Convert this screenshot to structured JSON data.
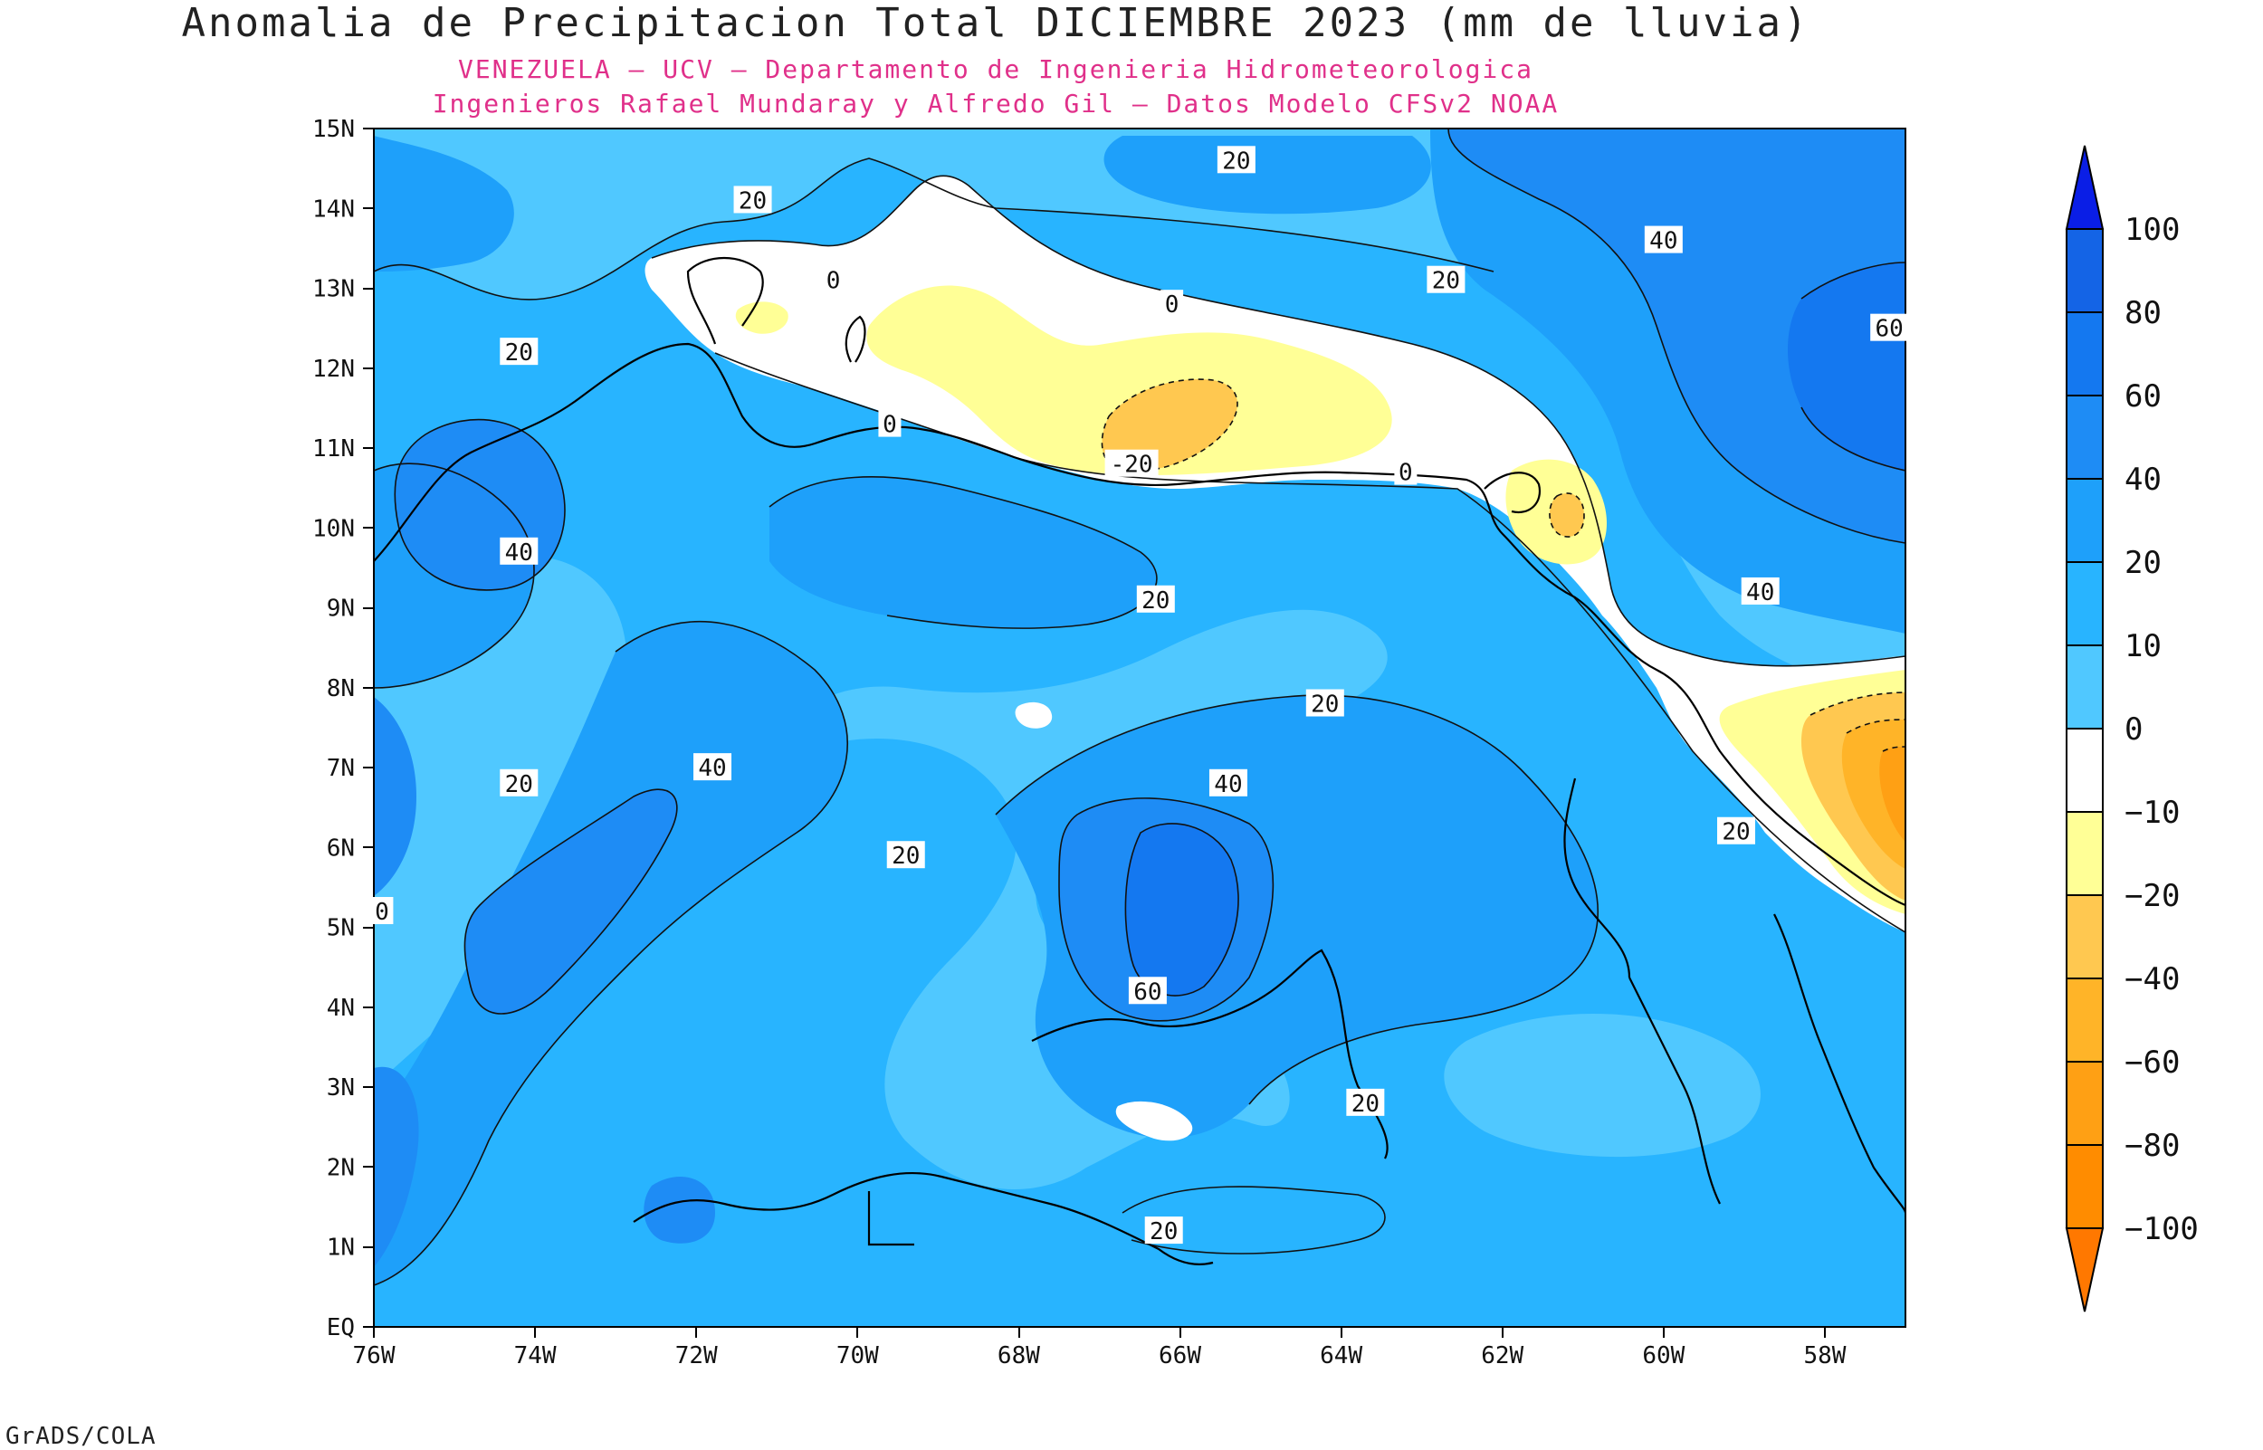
{
  "title": "Anomalia de Precipitacion Total DICIEMBRE 2023 (mm de lluvia)",
  "subtitle_line1": "VENEZUELA – UCV – Departamento de Ingenieria Hidrometeorologica",
  "subtitle_line2": "Ingenieros Rafael Mundaray y Alfredo Gil – Datos Modelo CFSv2 NOAA",
  "footer": "GrADS/COLA",
  "map": {
    "lon_ticks": [
      "76W",
      "74W",
      "72W",
      "70W",
      "68W",
      "66W",
      "64W",
      "62W",
      "60W",
      "58W"
    ],
    "lat_ticks": [
      "EQ",
      "1N",
      "2N",
      "3N",
      "4N",
      "5N",
      "6N",
      "7N",
      "8N",
      "9N",
      "10N",
      "11N",
      "12N",
      "13N",
      "14N",
      "15N"
    ],
    "lon_range": [
      -76,
      -57
    ],
    "lat_range": [
      0,
      15
    ],
    "contour_labels": [
      {
        "text": "20",
        "lon": -71.3,
        "lat": 14.1
      },
      {
        "text": "20",
        "lon": -65.3,
        "lat": 14.6
      },
      {
        "text": "40",
        "lon": -60.0,
        "lat": 13.6
      },
      {
        "text": "0",
        "lon": -70.3,
        "lat": 13.1
      },
      {
        "text": "20",
        "lon": -62.7,
        "lat": 13.1
      },
      {
        "text": "0",
        "lon": -66.1,
        "lat": 12.8
      },
      {
        "text": "60",
        "lon": -57.2,
        "lat": 12.5
      },
      {
        "text": "20",
        "lon": -74.2,
        "lat": 12.2
      },
      {
        "text": "0",
        "lon": -69.6,
        "lat": 11.3
      },
      {
        "text": "-20",
        "lon": -66.6,
        "lat": 10.8
      },
      {
        "text": "0",
        "lon": -63.2,
        "lat": 10.7
      },
      {
        "text": "40",
        "lon": -74.2,
        "lat": 9.7
      },
      {
        "text": "20",
        "lon": -66.3,
        "lat": 9.1
      },
      {
        "text": "40",
        "lon": -58.8,
        "lat": 9.2
      },
      {
        "text": "20",
        "lon": -64.2,
        "lat": 7.8
      },
      {
        "text": "20",
        "lon": -74.2,
        "lat": 6.8
      },
      {
        "text": "40",
        "lon": -71.8,
        "lat": 7.0
      },
      {
        "text": "40",
        "lon": -65.4,
        "lat": 6.8
      },
      {
        "text": "20",
        "lon": -69.4,
        "lat": 5.9
      },
      {
        "text": "20",
        "lon": -59.1,
        "lat": 6.2
      },
      {
        "text": "0",
        "lon": -75.9,
        "lat": 5.2
      },
      {
        "text": "60",
        "lon": -66.4,
        "lat": 4.2
      },
      {
        "text": "20",
        "lon": -63.7,
        "lat": 2.8
      },
      {
        "text": "20",
        "lon": -66.2,
        "lat": 1.2
      }
    ]
  },
  "legend": {
    "labels": [
      "100",
      "80",
      "60",
      "40",
      "20",
      "10",
      "0",
      "-10",
      "-20",
      "-40",
      "-60",
      "-80",
      "-100"
    ],
    "colors": [
      "#0a1ee6",
      "#1464e6",
      "#1478f0",
      "#1e8cf5",
      "#1ea0fa",
      "#28b4ff",
      "#50c8ff",
      "#ffffff",
      "#ffff96",
      "#ffc850",
      "#ffb428",
      "#ffa014",
      "#ff8c00",
      "#ff7800"
    ]
  }
}
